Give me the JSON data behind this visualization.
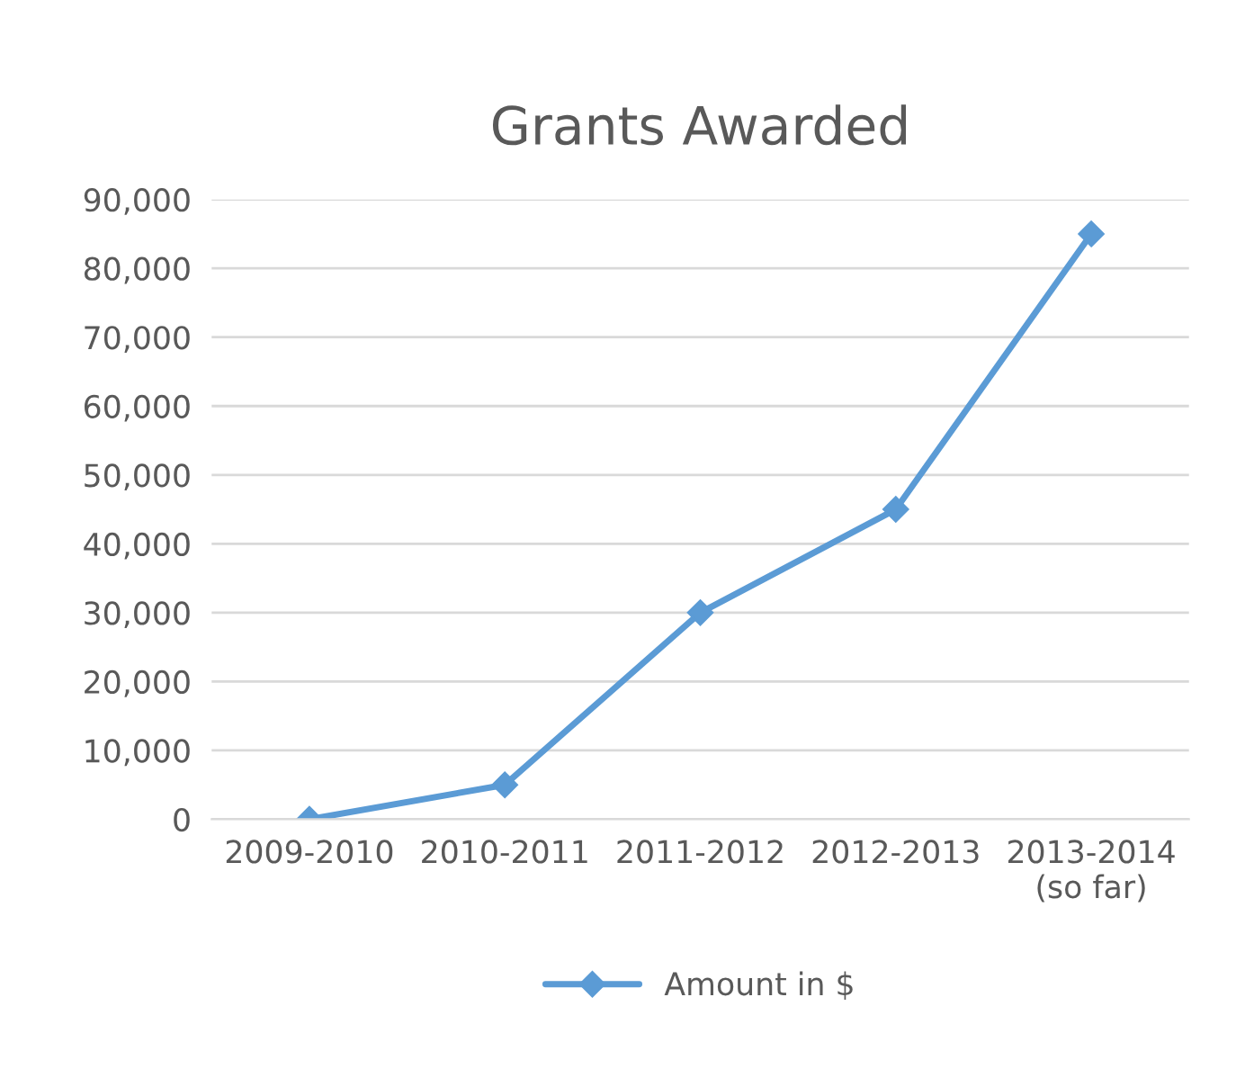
{
  "chart_data": {
    "type": "line",
    "title": "Grants Awarded",
    "categories": [
      "2009-2010",
      "2010-2011",
      "2011-2012",
      "2012-2013",
      "2013-2014\n(so far)"
    ],
    "series": [
      {
        "name": "Amount in $",
        "color": "#5b9bd5",
        "values": [
          0,
          5000,
          30000,
          45000,
          85000
        ]
      }
    ],
    "ylim": [
      0,
      90000
    ],
    "yticks": [
      0,
      {
        "value": 10000,
        "label": "10,000"
      },
      {
        "value": 20000,
        "label": "20,000"
      },
      {
        "value": 30000,
        "label": "30,000"
      },
      {
        "value": 40000,
        "label": "40,000"
      },
      {
        "value": 50000,
        "label": "50,000"
      },
      {
        "value": 60000,
        "label": "60,000"
      },
      {
        "value": 70000,
        "label": "70,000"
      },
      {
        "value": 80000,
        "label": "80,000"
      },
      {
        "value": 90000,
        "label": "90,000"
      }
    ],
    "grid": "y",
    "legend": "bottom",
    "marker": "diamond",
    "line_style": "solid"
  }
}
